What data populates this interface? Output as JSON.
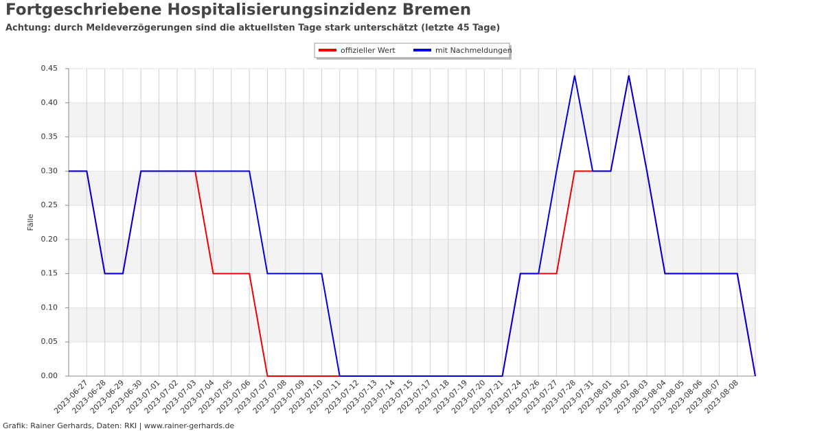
{
  "chart_data": {
    "type": "line",
    "title": "Fortgeschriebene Hospitalisierungsinzidenz Bremen",
    "subtitle": "Achtung: durch Meldeverzögerungen sind die aktuellsten Tage stark unterschätzt (letzte 45 Tage)",
    "y_label": "Fälle",
    "footer": "Grafik: Rainer Gerhards, Daten: RKI | www.rainer-gerhards.de",
    "categories": [
      null,
      "2023-06-27",
      "2023-06-28",
      "2023-06-29",
      "2023-06-30",
      "2023-07-01",
      "2023-07-02",
      "2023-07-03",
      "2023-07-04",
      "2023-07-05",
      "2023-07-06",
      "2023-07-07",
      "2023-07-08",
      "2023-07-09",
      "2023-07-10",
      "2023-07-11",
      "2023-07-12",
      "2023-07-13",
      "2023-07-14",
      "2023-07-15",
      "2023-07-17",
      "2023-07-18",
      "2023-07-19",
      "2023-07-20",
      "2023-07-21",
      "2023-07-24",
      "2023-07-26",
      "2023-07-27",
      "2023-07-28",
      "2023-07-31",
      "2023-08-01",
      "2023-08-02",
      "2023-08-03",
      "2023-08-04",
      "2023-08-05",
      "2023-08-06",
      "2023-08-07",
      "2023-08-08",
      null
    ],
    "series": [
      {
        "name": "offizieller Wert",
        "color": "#ee0000",
        "values": [
          0.3,
          0.3,
          0.15,
          0.15,
          0.3,
          0.3,
          0.3,
          0.3,
          0.15,
          0.15,
          0.15,
          0,
          0,
          0,
          0,
          0,
          0,
          0,
          0,
          0,
          0,
          0,
          0,
          0,
          0,
          0.15,
          0.15,
          0.15,
          0.3,
          0.3,
          0.3,
          0.44,
          0.3,
          0.15,
          0.15,
          0.15,
          0.15,
          0.15,
          0
        ]
      },
      {
        "name": "mit Nachmeldungen",
        "color": "#0000dd",
        "values": [
          0.3,
          0.3,
          0.15,
          0.15,
          0.3,
          0.3,
          0.3,
          0.3,
          0.3,
          0.3,
          0.3,
          0.15,
          0.15,
          0.15,
          0.15,
          0,
          0,
          0,
          0,
          0,
          0,
          0,
          0,
          0,
          0,
          0.15,
          0.15,
          0.3,
          0.44,
          0.3,
          0.3,
          0.44,
          0.3,
          0.15,
          0.15,
          0.15,
          0.15,
          0.15,
          0
        ]
      }
    ],
    "ylim": [
      0,
      0.45
    ],
    "yticks": [
      {
        "value": 0,
        "label": "0.00"
      },
      {
        "value": 0.05,
        "label": "0.05"
      },
      {
        "value": 0.1,
        "label": "0.10"
      },
      {
        "value": 0.15,
        "label": "0.15"
      },
      {
        "value": 0.2,
        "label": "0.20"
      },
      {
        "value": 0.25,
        "label": "0.25"
      },
      {
        "value": 0.3,
        "label": "0.30"
      },
      {
        "value": 0.35,
        "label": "0.35"
      },
      {
        "value": 0.4,
        "label": "0.40"
      },
      {
        "value": 0.45,
        "label": "0.45"
      }
    ],
    "grid": true,
    "legend": "top"
  }
}
